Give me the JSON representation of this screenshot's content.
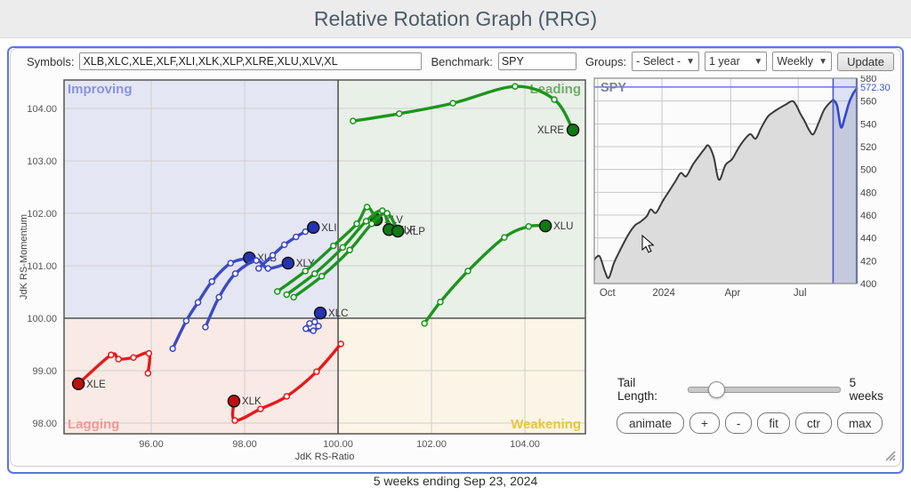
{
  "header": {
    "title": "Relative Rotation Graph (RRG)"
  },
  "controls": {
    "symbols_label": "Symbols:",
    "symbols_value": "XLB,XLC,XLE,XLF,XLI,XLK,XLP,XLRE,XLU,XLV,XL",
    "benchmark_label": "Benchmark:",
    "benchmark_value": "SPY",
    "groups_label": "Groups:",
    "groups_value": "- Select -",
    "period_value": "1 year",
    "interval_value": "Weekly",
    "update_label": "Update"
  },
  "tail_control": {
    "label": "Tail Length:",
    "value": "5 weeks"
  },
  "toolbar": {
    "buttons": [
      "animate",
      "+",
      "-",
      "fit",
      "ctr",
      "max"
    ]
  },
  "footer": {
    "caption": "5 weeks ending Sep 23, 2024"
  },
  "chart_data": [
    {
      "id": "rrg",
      "type": "scatter",
      "xlabel": "JdK RS-Ratio",
      "ylabel": "JdK RS-Momentum",
      "xlim": [
        94.14,
        105.3
      ],
      "ylim": [
        97.78,
        104.55
      ],
      "x_ticks": [
        96,
        98,
        100,
        102,
        104
      ],
      "y_ticks": [
        98,
        99,
        100,
        101,
        102,
        103,
        104
      ],
      "center": [
        100,
        100
      ],
      "quadrants": {
        "improving": {
          "label": "Improving",
          "bg": "#e4e6f3",
          "color": "#8a93e0"
        },
        "leading": {
          "label": "Leading",
          "bg": "#e9f0e8",
          "color": "#6fae68"
        },
        "lagging": {
          "label": "Lagging",
          "bg": "#f9eae6",
          "color": "#f09a94"
        },
        "weakening": {
          "label": "Weakening",
          "bg": "#faf5e6",
          "color": "#e9c63f"
        }
      },
      "colors": {
        "blue": {
          "line": "#3c49c6",
          "marker": "#2433b4"
        },
        "red": {
          "line": "#e51a1a",
          "marker": "#c00d0d"
        },
        "green": {
          "line": "#1c951c",
          "marker": "#0e7a12"
        }
      },
      "series": [
        {
          "name": "XLE",
          "group": "red",
          "label_side": "right",
          "points": [
            [
              95.93,
              98.95
            ],
            [
              95.95,
              99.33
            ],
            [
              95.62,
              99.25
            ],
            [
              95.3,
              99.22
            ],
            [
              95.14,
              99.3
            ],
            [
              94.44,
              98.75
            ]
          ]
        },
        {
          "name": "XLK",
          "group": "red",
          "label_side": "right",
          "points": [
            [
              100.06,
              99.51
            ],
            [
              99.54,
              98.98
            ],
            [
              98.9,
              98.51
            ],
            [
              98.34,
              98.27
            ],
            [
              97.79,
              98.05
            ],
            [
              97.77,
              98.42
            ]
          ]
        },
        {
          "name": "XLB",
          "group": "blue",
          "label_side": "right",
          "points": [
            [
              96.46,
              99.42
            ],
            [
              96.75,
              99.95
            ],
            [
              97.0,
              100.3
            ],
            [
              97.3,
              100.7
            ],
            [
              97.7,
              101.05
            ],
            [
              98.1,
              101.15
            ]
          ]
        },
        {
          "name": "XLY",
          "group": "blue",
          "label_side": "right",
          "points": [
            [
              97.16,
              99.83
            ],
            [
              97.45,
              100.4
            ],
            [
              97.8,
              100.85
            ],
            [
              98.25,
              101.1
            ],
            [
              98.5,
              100.95
            ],
            [
              98.93,
              101.05
            ]
          ]
        },
        {
          "name": "XLI",
          "group": "blue",
          "label_side": "right",
          "points": [
            [
              98.3,
              100.95
            ],
            [
              98.6,
              101.2
            ],
            [
              98.85,
              101.4
            ],
            [
              99.1,
              101.55
            ],
            [
              99.3,
              101.65
            ],
            [
              99.47,
              101.73
            ]
          ]
        },
        {
          "name": "XLC",
          "group": "blue",
          "label_side": "right",
          "points": [
            [
              99.39,
              99.9
            ],
            [
              99.31,
              99.8
            ],
            [
              99.47,
              99.76
            ],
            [
              99.58,
              99.85
            ],
            [
              99.5,
              99.93
            ],
            [
              99.62,
              100.1
            ]
          ]
        },
        {
          "name": "XLV",
          "group": "green",
          "label_side": "right",
          "points": [
            [
              98.7,
              100.51
            ],
            [
              99.3,
              100.9
            ],
            [
              99.9,
              101.38
            ],
            [
              100.4,
              101.8
            ],
            [
              100.62,
              102.12
            ],
            [
              100.82,
              101.88
            ]
          ]
        },
        {
          "name": "XLF",
          "group": "green",
          "label_side": "right",
          "points": [
            [
              98.9,
              100.45
            ],
            [
              99.5,
              100.85
            ],
            [
              100.1,
              101.35
            ],
            [
              100.6,
              101.85
            ],
            [
              100.95,
              102.05
            ],
            [
              101.09,
              101.69
            ]
          ]
        },
        {
          "name": "XLP",
          "group": "green",
          "label_side": "right",
          "points": [
            [
              99.05,
              100.4
            ],
            [
              99.65,
              100.8
            ],
            [
              100.25,
              101.3
            ],
            [
              100.72,
              101.8
            ],
            [
              101.05,
              102.0
            ],
            [
              101.28,
              101.66
            ]
          ]
        },
        {
          "name": "XLRE",
          "group": "green",
          "label_side": "left",
          "points": [
            [
              100.32,
              103.76
            ],
            [
              101.31,
              103.9
            ],
            [
              102.46,
              104.1
            ],
            [
              103.79,
              104.42
            ],
            [
              104.63,
              104.17
            ],
            [
              105.03,
              103.59
            ]
          ]
        },
        {
          "name": "XLU",
          "group": "green",
          "label_side": "right",
          "points": [
            [
              101.85,
              99.9
            ],
            [
              102.19,
              100.31
            ],
            [
              102.78,
              100.9
            ],
            [
              103.56,
              101.54
            ],
            [
              104.08,
              101.75
            ],
            [
              104.44,
              101.76
            ]
          ]
        }
      ]
    },
    {
      "id": "spy",
      "type": "area",
      "symbol": "SPY",
      "last_price": "572.30",
      "ylim": [
        400,
        580
      ],
      "y_ticks": [
        400,
        420,
        440,
        460,
        480,
        500,
        520,
        540,
        560,
        580
      ],
      "x_ticks": [
        {
          "label": "Oct",
          "f": 0.013
        },
        {
          "label": "2024",
          "f": 0.258
        },
        {
          "label": "Apr",
          "f": 0.52
        },
        {
          "label": "Jul",
          "f": 0.777
        }
      ],
      "highlight_start_f": 0.91,
      "line": [
        [
          0.0,
          421
        ],
        [
          0.02,
          424
        ],
        [
          0.04,
          411
        ],
        [
          0.055,
          405
        ],
        [
          0.075,
          418
        ],
        [
          0.1,
          430
        ],
        [
          0.13,
          443
        ],
        [
          0.155,
          451
        ],
        [
          0.175,
          454
        ],
        [
          0.2,
          459
        ],
        [
          0.215,
          465
        ],
        [
          0.235,
          462
        ],
        [
          0.26,
          472
        ],
        [
          0.285,
          481
        ],
        [
          0.31,
          490
        ],
        [
          0.33,
          497
        ],
        [
          0.35,
          494
        ],
        [
          0.375,
          504
        ],
        [
          0.4,
          512
        ],
        [
          0.42,
          518
        ],
        [
          0.435,
          521
        ],
        [
          0.455,
          511
        ],
        [
          0.475,
          491
        ],
        [
          0.5,
          504
        ],
        [
          0.525,
          509
        ],
        [
          0.55,
          519
        ],
        [
          0.575,
          527
        ],
        [
          0.595,
          531
        ],
        [
          0.615,
          527
        ],
        [
          0.635,
          536
        ],
        [
          0.66,
          546
        ],
        [
          0.68,
          550
        ],
        [
          0.7,
          553
        ],
        [
          0.73,
          557
        ],
        [
          0.755,
          560
        ],
        [
          0.77,
          556
        ],
        [
          0.785,
          549
        ],
        [
          0.8,
          543
        ],
        [
          0.82,
          534
        ],
        [
          0.835,
          531
        ],
        [
          0.855,
          541
        ],
        [
          0.875,
          552
        ],
        [
          0.895,
          558
        ],
        [
          0.91,
          561
        ]
      ],
      "tail_line": [
        [
          0.91,
          561
        ],
        [
          0.925,
          556
        ],
        [
          0.94,
          537
        ],
        [
          0.955,
          546
        ],
        [
          0.97,
          558
        ],
        [
          0.985,
          566
        ],
        [
          1.0,
          571
        ]
      ],
      "colors": {
        "line": "#3a3a3a",
        "fill": "#dcdcdc",
        "tail": "#2f49d1",
        "band": "rgba(95,115,220,0.18)",
        "level": "#6b79d6",
        "axis_blue": "#4659cc"
      }
    }
  ]
}
